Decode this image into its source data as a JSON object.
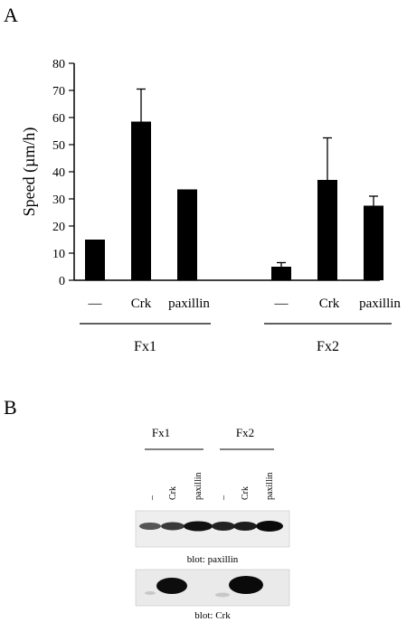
{
  "panels": {
    "a": "A",
    "b": "B"
  },
  "chart_data": {
    "type": "bar",
    "title": "",
    "ylabel": "Speed (µm/h)",
    "ylim": [
      0,
      80
    ],
    "yticks": [
      "0",
      "10",
      "20",
      "30",
      "40",
      "50",
      "60",
      "70",
      "80"
    ],
    "groups": [
      {
        "name": "Fx1",
        "categories": [
          "—",
          "Crk",
          "paxillin"
        ],
        "values": [
          15,
          58.5,
          33.5
        ],
        "errors": [
          0,
          12,
          0
        ]
      },
      {
        "name": "Fx2",
        "categories": [
          "—",
          "Crk",
          "paxillin"
        ],
        "values": [
          5,
          37,
          27.5
        ],
        "errors": [
          1.5,
          15.5,
          3.5
        ]
      }
    ],
    "bar_color": "#000000",
    "grid": false
  },
  "blot": {
    "groups": [
      "Fx1",
      "Fx2"
    ],
    "lanes": [
      "–",
      "Crk",
      "paxillin",
      "–",
      "Crk",
      "paxillin"
    ],
    "captions": [
      "blot: paxillin",
      "blot: Crk"
    ]
  }
}
